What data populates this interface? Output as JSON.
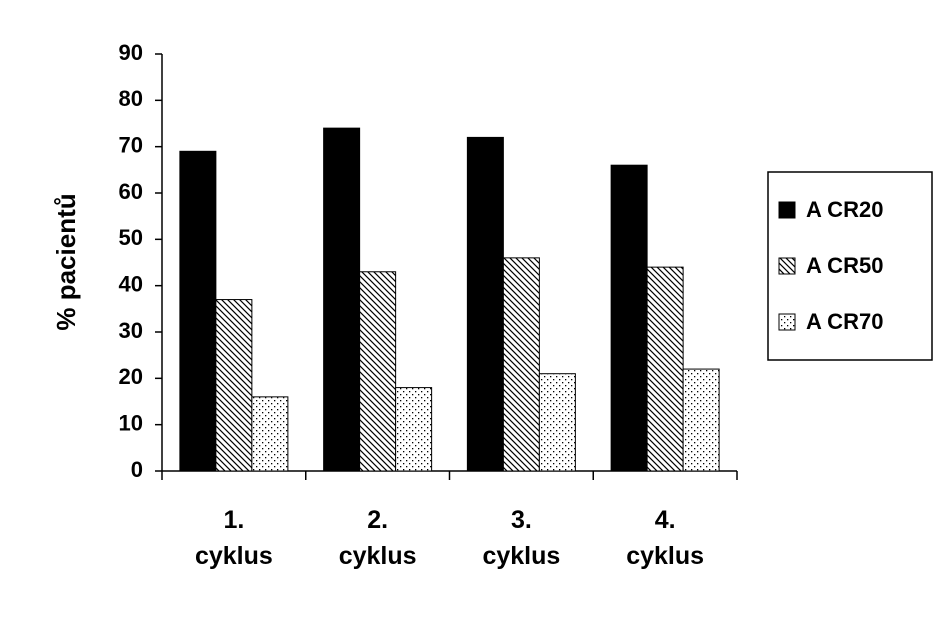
{
  "chart_data": {
    "type": "bar",
    "y_label": "% pacientů",
    "categories": [
      "1. cyklus",
      "2. cyklus",
      "3. cyklus",
      "4. cyklus"
    ],
    "series": [
      {
        "name": "A CR20",
        "color": "#000000",
        "pattern": "solid",
        "values": [
          69,
          74,
          72,
          66
        ]
      },
      {
        "name": "A CR50",
        "color": "#000000",
        "pattern": "diagonal",
        "values": [
          37,
          43,
          46,
          44
        ]
      },
      {
        "name": "A CR70",
        "color": "#000000",
        "pattern": "dots",
        "values": [
          16,
          18,
          21,
          22
        ]
      }
    ],
    "ylim": [
      0,
      90
    ],
    "yticks": [
      0,
      10,
      20,
      30,
      40,
      50,
      60,
      70,
      80,
      90
    ],
    "grid": false,
    "legend": "right"
  }
}
